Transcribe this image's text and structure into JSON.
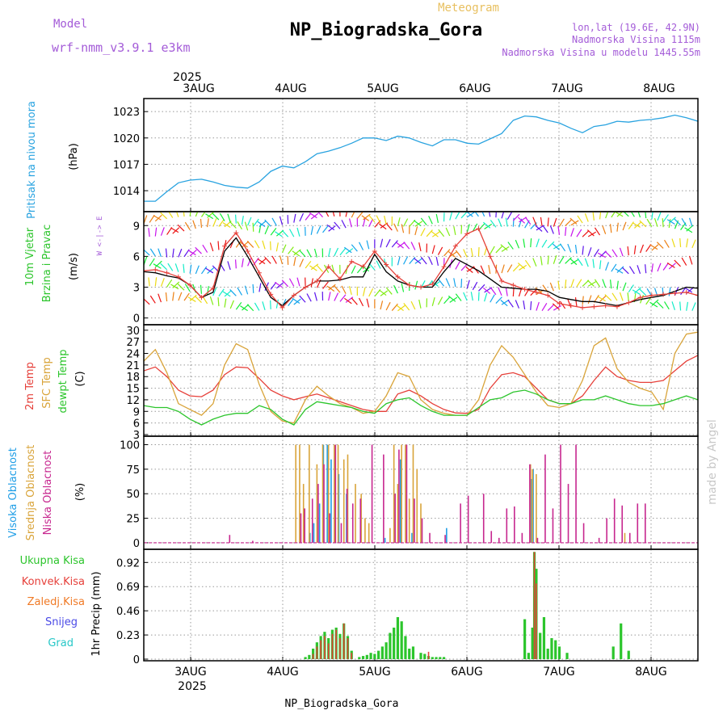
{
  "header": {
    "model_label": "Model",
    "model_name": "wrf-nmm_v3.9.1 e3km",
    "meteogram_label": "Meteogram",
    "station_title": "NP_Biogradska_Gora",
    "lonlat": "lon,lat (19.6E, 42.9N)",
    "altitude": "Nadmorska Visina 1115m",
    "model_altitude": "Nadmorska Visina u modelu 1445.55m",
    "watermark": "made by Angel",
    "footer": "NP_Biogradska_Gora"
  },
  "colors": {
    "pressure": "#29a3e0",
    "wind_speed": "#000000",
    "gust": "#e6403a",
    "t2m": "#e6403a",
    "sfc_temp": "#d9a43a",
    "dewpt": "#2cc52c",
    "high_cloud": "#1f9ee6",
    "mid_cloud": "#d9a43a",
    "low_cloud": "#c7278f",
    "total_precip": "#2cc52c",
    "conv_precip": "#e6403a",
    "frozen_precip": "#f07a26",
    "snow": "#4a4ae6",
    "graupel": "#26c7c7",
    "purple_text": "#a45cd8",
    "orange_text": "#e8c060"
  },
  "time_axis": {
    "year_label": "2025",
    "days": [
      "3AUG",
      "4AUG",
      "5AUG",
      "6AUG",
      "7AUG",
      "8AUG"
    ]
  },
  "chart_data": [
    {
      "type": "line",
      "id": "pressure",
      "title": "Pritisak na nivou mora",
      "ylabel": "(hPa)",
      "ylim": [
        1011.8,
        1024.3
      ],
      "yticks": [
        1014,
        1017,
        1020,
        1023
      ],
      "x_unit": "hours since 2025-08-02 12:00",
      "xlim": [
        0,
        144
      ],
      "series": [
        {
          "name": "Pritisak",
          "x": [
            0,
            3,
            6,
            9,
            12,
            15,
            18,
            21,
            24,
            27,
            30,
            33,
            36,
            39,
            42,
            45,
            48,
            51,
            54,
            57,
            60,
            63,
            66,
            69,
            72,
            75,
            78,
            81,
            84,
            87,
            90,
            93,
            96,
            99,
            102,
            105,
            108,
            111,
            114,
            117,
            120,
            123,
            126,
            129,
            132,
            135,
            138,
            141,
            144
          ],
          "values": [
            1012.8,
            1012.8,
            1013.9,
            1014.9,
            1015.2,
            1015.3,
            1015.0,
            1014.6,
            1014.4,
            1014.3,
            1015.0,
            1016.2,
            1016.8,
            1016.6,
            1017.3,
            1018.2,
            1018.5,
            1018.9,
            1019.4,
            1020.0,
            1020.0,
            1019.7,
            1020.2,
            1020.0,
            1019.5,
            1019.1,
            1019.8,
            1019.8,
            1019.4,
            1019.3,
            1019.9,
            1020.5,
            1022.0,
            1022.5,
            1022.4,
            1022.0,
            1021.7,
            1021.1,
            1020.6,
            1021.3,
            1021.5,
            1021.9,
            1021.8,
            1022.0,
            1022.1,
            1022.3,
            1022.6,
            1022.3,
            1021.9
          ]
        }
      ]
    },
    {
      "type": "line",
      "id": "wind",
      "title": "10m Vjetar Brzina i Pravac",
      "ylabel": "(m/s)",
      "direction_legend": "W <-|-> E",
      "ylim": [
        -0.5,
        10.2
      ],
      "yticks": [
        0,
        3,
        6,
        9
      ],
      "series": [
        {
          "name": "Brzina",
          "x": [
            0,
            3,
            6,
            9,
            12,
            15,
            18,
            21,
            24,
            27,
            30,
            33,
            36,
            39,
            42,
            45,
            48,
            51,
            54,
            57,
            60,
            63,
            66,
            69,
            72,
            75,
            78,
            81,
            84,
            87,
            90,
            93,
            96,
            99,
            102,
            105,
            108,
            111,
            114,
            117,
            120,
            123,
            126,
            129,
            132,
            135,
            138,
            141,
            144
          ],
          "values": [
            4.5,
            4.4,
            4.1,
            3.9,
            3.2,
            2.0,
            2.5,
            6.5,
            7.8,
            6.0,
            4.0,
            2.0,
            1.2,
            2.2,
            3.0,
            3.6,
            3.6,
            3.7,
            4.0,
            4.0,
            6.2,
            4.5,
            3.6,
            3.2,
            3.0,
            3.0,
            4.5,
            5.8,
            5.2,
            4.6,
            3.8,
            3.0,
            2.9,
            2.8,
            2.8,
            2.6,
            2.0,
            1.8,
            1.6,
            1.6,
            1.4,
            1.2,
            1.5,
            1.8,
            2.0,
            2.2,
            2.6,
            3.0,
            2.9
          ]
        },
        {
          "name": "Udari",
          "x": [
            0,
            3,
            6,
            9,
            12,
            15,
            18,
            21,
            24,
            27,
            30,
            33,
            36,
            39,
            42,
            45,
            48,
            51,
            54,
            57,
            60,
            63,
            66,
            69,
            72,
            75,
            78,
            81,
            84,
            87,
            90,
            93,
            96,
            99,
            102,
            105,
            108,
            111,
            114,
            117,
            120,
            123,
            126,
            129,
            132,
            135,
            138,
            141,
            144
          ],
          "values": [
            4.6,
            4.7,
            4.4,
            4.0,
            3.2,
            2.0,
            2.9,
            7.0,
            8.3,
            6.5,
            4.4,
            2.3,
            1.0,
            2.2,
            3.0,
            3.6,
            5.0,
            3.8,
            5.5,
            5.0,
            6.5,
            5.2,
            4.0,
            3.2,
            3.0,
            3.3,
            5.0,
            7.0,
            8.2,
            8.7,
            6.0,
            3.6,
            3.2,
            2.8,
            2.5,
            2.2,
            1.4,
            1.2,
            1.0,
            1.1,
            1.2,
            1.1,
            1.5,
            2.0,
            2.2,
            2.3,
            2.4,
            2.5,
            2.2
          ]
        }
      ]
    },
    {
      "type": "line",
      "id": "temperature",
      "title": "2m Temp / SFC Temp / dewpt Temp",
      "labels": [
        "2m Temp",
        "SFC Temp",
        "dewpt Temp"
      ],
      "ylabel": "(C)",
      "ylim": [
        3,
        31
      ],
      "yticks": [
        3,
        6,
        9,
        12,
        15,
        18,
        21,
        24,
        27,
        30
      ],
      "series": [
        {
          "name": "2m Temp",
          "x": [
            0,
            3,
            6,
            9,
            12,
            15,
            18,
            21,
            24,
            27,
            30,
            33,
            36,
            39,
            42,
            45,
            48,
            51,
            54,
            57,
            60,
            63,
            66,
            69,
            72,
            75,
            78,
            81,
            84,
            87,
            90,
            93,
            96,
            99,
            102,
            105,
            108,
            111,
            114,
            117,
            120,
            123,
            126,
            129,
            132,
            135,
            138,
            141,
            144
          ],
          "values": [
            19.5,
            20.5,
            18.0,
            14.5,
            13.0,
            12.8,
            14.5,
            18.5,
            20.5,
            20.3,
            17.5,
            14.5,
            13.0,
            12.0,
            12.8,
            13.5,
            12.5,
            11.5,
            10.5,
            9.5,
            9.0,
            9.0,
            13.5,
            14.5,
            13.0,
            11.0,
            9.5,
            8.6,
            8.5,
            9.5,
            15.0,
            18.5,
            19.0,
            18.0,
            15.0,
            12.0,
            11.0,
            11.0,
            13.0,
            17.0,
            20.5,
            18.0,
            17.0,
            16.5,
            16.5,
            17.0,
            19.5,
            22.0,
            23.5
          ]
        },
        {
          "name": "SFC Temp",
          "x": [
            0,
            3,
            6,
            9,
            12,
            15,
            18,
            21,
            24,
            27,
            30,
            33,
            36,
            39,
            42,
            45,
            48,
            51,
            54,
            57,
            60,
            63,
            66,
            69,
            72,
            75,
            78,
            81,
            84,
            87,
            90,
            93,
            96,
            99,
            102,
            105,
            108,
            111,
            114,
            117,
            120,
            123,
            126,
            129,
            132,
            135,
            138,
            141,
            144
          ],
          "values": [
            22,
            25,
            19,
            11,
            9.5,
            8.0,
            11,
            21,
            26.5,
            25,
            16,
            9,
            6.5,
            6,
            12,
            15.5,
            13,
            11,
            10,
            8.5,
            9,
            13,
            19,
            18,
            12,
            9.5,
            8.5,
            8,
            8,
            12,
            21,
            26,
            23,
            18.5,
            14,
            10.5,
            10,
            11,
            17,
            26,
            28,
            20,
            16.5,
            15,
            14,
            9.5,
            24,
            29,
            29.5
          ]
        },
        {
          "name": "dewpt Temp",
          "x": [
            0,
            3,
            6,
            9,
            12,
            15,
            18,
            21,
            24,
            27,
            30,
            33,
            36,
            39,
            42,
            45,
            48,
            51,
            54,
            57,
            60,
            63,
            66,
            69,
            72,
            75,
            78,
            81,
            84,
            87,
            90,
            93,
            96,
            99,
            102,
            105,
            108,
            111,
            114,
            117,
            120,
            123,
            126,
            129,
            132,
            135,
            138,
            141,
            144
          ],
          "values": [
            10.5,
            10.0,
            10.0,
            9.0,
            7.0,
            5.5,
            7.0,
            8.0,
            8.5,
            8.5,
            10.5,
            9.5,
            7.0,
            5.5,
            9.5,
            11.5,
            11.0,
            10.5,
            10.0,
            9.0,
            8.5,
            11.0,
            12.0,
            12.5,
            10.5,
            9.0,
            8.0,
            8.0,
            8.0,
            10.0,
            12.0,
            12.5,
            14.0,
            14.5,
            13.5,
            12.0,
            11.0,
            11.0,
            12.0,
            12.0,
            13.0,
            12.0,
            11.0,
            10.5,
            10.5,
            11.0,
            12.0,
            13.0,
            12.0
          ]
        }
      ]
    },
    {
      "type": "bar",
      "id": "cloud",
      "title": "Visoka / Srednja / Niska Oblacnost",
      "labels": [
        "Visoka Oblacnost",
        "Srednja Oblacnost",
        "Niska Oblacnost"
      ],
      "ylabel": "(%)",
      "ylim": [
        -5,
        107
      ],
      "yticks": [
        0,
        25,
        50,
        75,
        100
      ],
      "series": [
        {
          "name": "Visoka Oblacnost",
          "x": [
            43.5,
            44.5,
            46,
            47,
            48,
            49,
            51,
            53,
            63,
            67,
            70,
            79,
            101,
            101.5
          ],
          "values": [
            10,
            20,
            40,
            100,
            100,
            85,
            70,
            50,
            5,
            85,
            10,
            15,
            65,
            75
          ]
        },
        {
          "name": "Srednja Oblacnost",
          "x": [
            39.5,
            40.5,
            41.5,
            43,
            45,
            46.5,
            48,
            49.5,
            50.5,
            52,
            53,
            55,
            56.5,
            57.5,
            58.5,
            64,
            65,
            66,
            67,
            68,
            69,
            70,
            71,
            72,
            100.5,
            101,
            102,
            125
          ],
          "values": [
            100,
            100,
            60,
            100,
            80,
            100,
            100,
            100,
            100,
            85,
            90,
            60,
            50,
            25,
            20,
            15,
            100,
            60,
            100,
            100,
            45,
            100,
            75,
            40,
            80,
            75,
            70,
            10
          ]
        },
        {
          "name": "Niska Oblacnost",
          "x": [
            22,
            28,
            40.5,
            41.5,
            43.5,
            45,
            46.5,
            48,
            49.5,
            51,
            52.5,
            54,
            56,
            59,
            62,
            65,
            66,
            68,
            70,
            72,
            74,
            78,
            82,
            84,
            88,
            90,
            92,
            94,
            96,
            98,
            100,
            102,
            104,
            106,
            108,
            110,
            112,
            114,
            118,
            120,
            122,
            124,
            126,
            128,
            130
          ],
          "values": [
            8,
            2,
            30,
            35,
            45,
            60,
            80,
            30,
            100,
            20,
            55,
            40,
            45,
            100,
            90,
            50,
            95,
            100,
            45,
            25,
            10,
            8,
            40,
            48,
            50,
            12,
            5,
            35,
            37,
            10,
            80,
            5,
            90,
            35,
            100,
            60,
            100,
            20,
            5,
            25,
            45,
            38,
            10,
            40,
            40
          ]
        }
      ]
    },
    {
      "type": "bar",
      "id": "precip",
      "title": "1hr Precip",
      "labels": [
        "Ukupna Kisa",
        "Konvek.Kisa",
        "Zaledj.Kisa",
        "Snijeg",
        "Grad"
      ],
      "ylabel": "1hr Precip (mm)",
      "ylim": [
        0,
        1.03
      ],
      "yticks": [
        0,
        0.23,
        0.46,
        0.69,
        0.92
      ],
      "series": [
        {
          "name": "Ukupna Kisa",
          "x": [
            42,
            43,
            44,
            45,
            46,
            47,
            48,
            49,
            50,
            51,
            52,
            53,
            54,
            56,
            57,
            58,
            59,
            60,
            61,
            62,
            63,
            64,
            65,
            66,
            67,
            68,
            69,
            70,
            72,
            73,
            74,
            75,
            76,
            77,
            78,
            99,
            100,
            101,
            101.5,
            102,
            103,
            104,
            105,
            106,
            107,
            108,
            110,
            122,
            124,
            126
          ],
          "values": [
            0.02,
            0.04,
            0.1,
            0.16,
            0.22,
            0.26,
            0.2,
            0.28,
            0.3,
            0.24,
            0.34,
            0.22,
            0.08,
            0.02,
            0.03,
            0.04,
            0.06,
            0.05,
            0.08,
            0.12,
            0.16,
            0.25,
            0.3,
            0.4,
            0.36,
            0.22,
            0.1,
            0.12,
            0.06,
            0.05,
            0.03,
            0.02,
            0.02,
            0.02,
            0.02,
            0.38,
            0.06,
            0.3,
            1.02,
            0.86,
            0.25,
            0.4,
            0.1,
            0.2,
            0.18,
            0.12,
            0.06,
            0.12,
            0.34,
            0.08
          ]
        },
        {
          "name": "Konvek.Kisa",
          "x": [
            44,
            45,
            46,
            47,
            48,
            49,
            50,
            51,
            52,
            53,
            54,
            74,
            101.5,
            102
          ],
          "values": [
            0.05,
            0.12,
            0.18,
            0.22,
            0.15,
            0.24,
            0.28,
            0.2,
            0.34,
            0.2,
            0.06,
            0.07,
            1.02,
            0.72
          ]
        }
      ]
    }
  ]
}
